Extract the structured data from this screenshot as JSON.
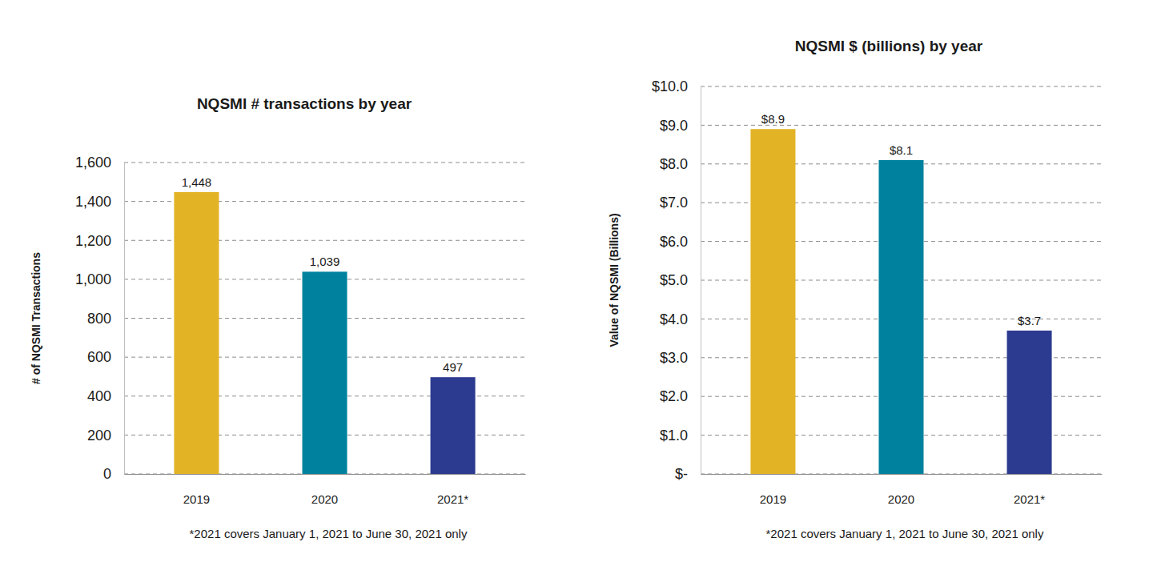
{
  "chart_data": [
    {
      "type": "bar",
      "title": "NQSMI # transactions by year",
      "y_label": "# of NQSMI Transactions",
      "categories": [
        "2019",
        "2020",
        "2021*"
      ],
      "values": [
        1448,
        1039,
        497
      ],
      "value_labels": [
        "1,448",
        "1,039",
        "497"
      ],
      "colors": [
        "#e2b325",
        "#00829e",
        "#2c3b8f"
      ],
      "ylim": [
        0,
        1600
      ],
      "yticks": [
        0,
        200,
        400,
        600,
        800,
        {
          "value": 1000,
          "label": "1,000"
        },
        {
          "value": 1200,
          "label": "1,200"
        },
        {
          "value": 1400,
          "label": "1,400"
        },
        {
          "value": 1600,
          "label": "1,600"
        }
      ],
      "grid": true,
      "data_labels": true,
      "annotations": [
        "*2021 covers January 1, 2021 to June 30, 2021 only"
      ]
    },
    {
      "type": "bar",
      "title": "NQSMI $ (billions) by year",
      "y_label": "Value of NQSMI (Billions)",
      "categories": [
        "2019",
        "2020",
        "2021*"
      ],
      "values": [
        8.9,
        8.1,
        3.7
      ],
      "value_labels": [
        "$8.9",
        "$8.1",
        "$3.7"
      ],
      "colors": [
        "#e2b325",
        "#00829e",
        "#2c3b8f"
      ],
      "ylim": [
        0,
        10
      ],
      "yticks": [
        {
          "value": 0,
          "label": "$-"
        },
        {
          "value": 1,
          "label": "$1.0"
        },
        {
          "value": 2,
          "label": "$2.0"
        },
        {
          "value": 3,
          "label": "$3.0"
        },
        {
          "value": 4,
          "label": "$4.0"
        },
        {
          "value": 5,
          "label": "$5.0"
        },
        {
          "value": 6,
          "label": "$6.0"
        },
        {
          "value": 7,
          "label": "$7.0"
        },
        {
          "value": 8,
          "label": "$8.0"
        },
        {
          "value": 9,
          "label": "$9.0"
        },
        {
          "value": 10,
          "label": "$10.0"
        }
      ],
      "grid": true,
      "data_labels": true,
      "annotations": [
        "*2021 covers January 1, 2021 to June 30, 2021 only"
      ]
    }
  ]
}
